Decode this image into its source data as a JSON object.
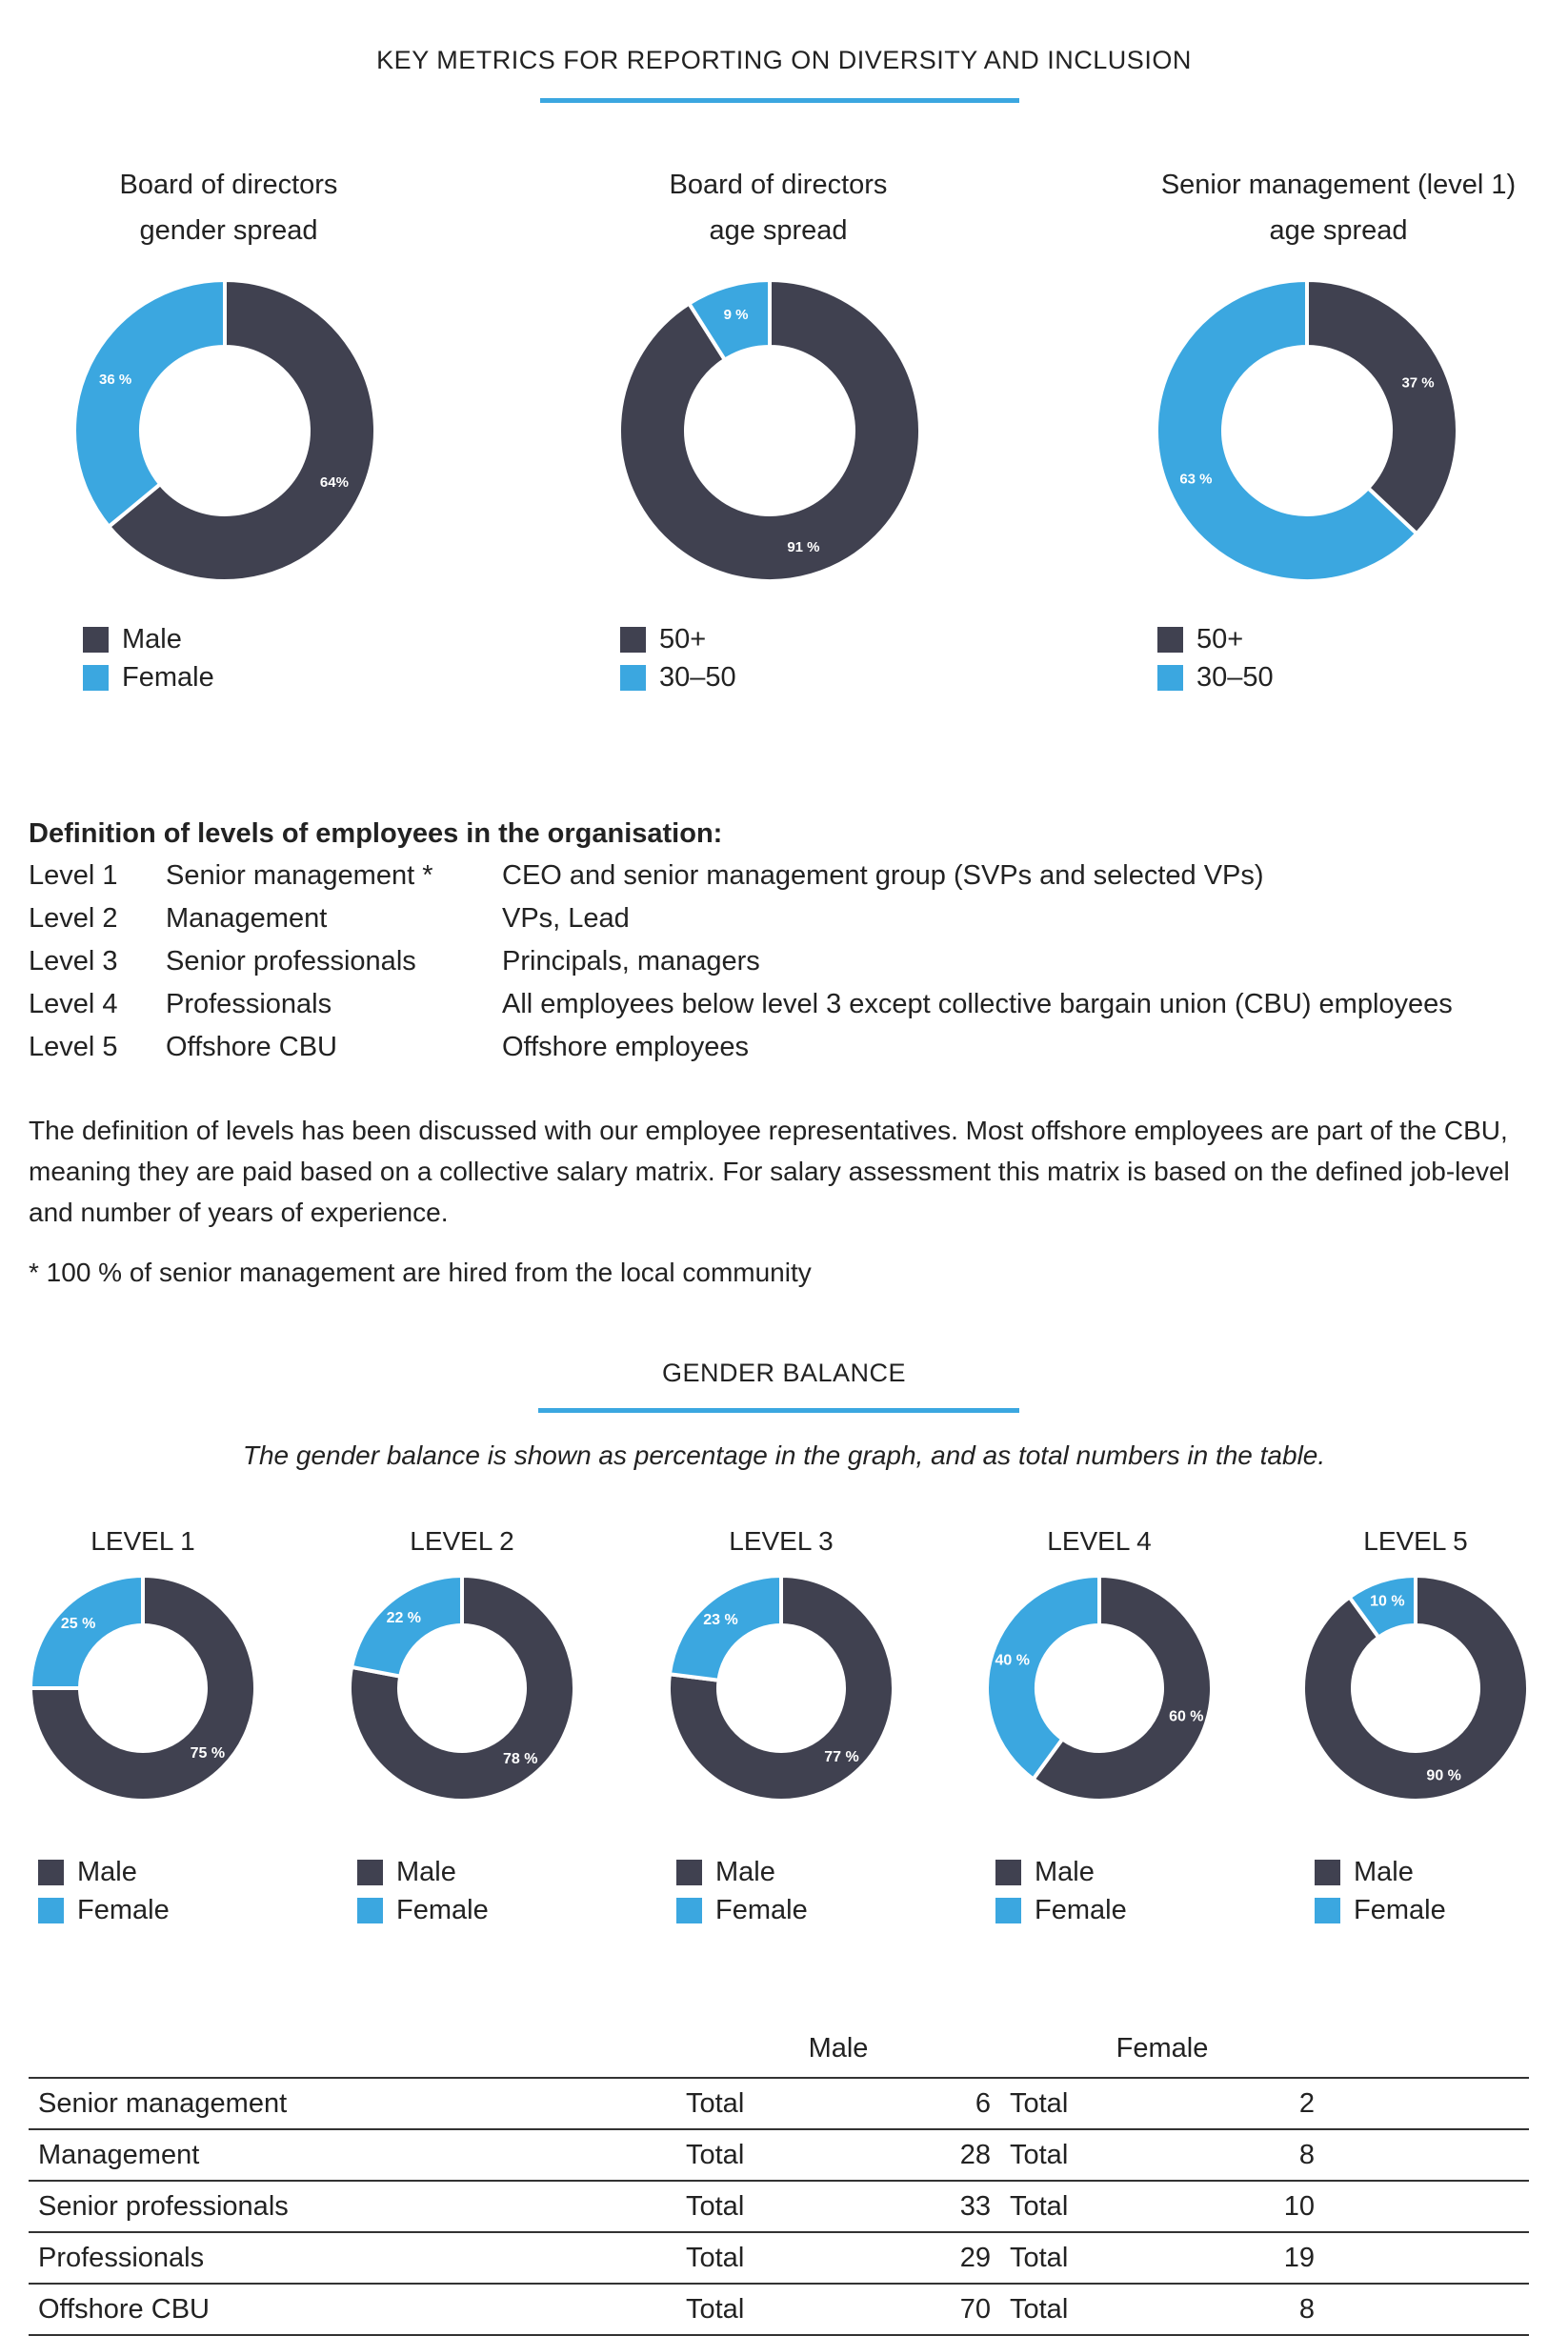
{
  "colors": {
    "dark": "#404150",
    "blue": "#3ba7e0",
    "accent_rule": "#3ba7e0"
  },
  "header": {
    "title": "KEY METRICS FOR REPORTING ON DIVERSITY AND INCLUSION"
  },
  "top_charts": [
    {
      "title_line1": "Board of directors",
      "title_line2": "gender spread",
      "legend": [
        "Male",
        "Female"
      ]
    },
    {
      "title_line1": "Board of directors",
      "title_line2": "age spread",
      "legend": [
        "50+",
        "30–50"
      ]
    },
    {
      "title_line1": "Senior management (level 1)",
      "title_line2": "age spread",
      "legend": [
        "50+",
        "30–50"
      ]
    }
  ],
  "definitions": {
    "heading": "Definition of levels of employees in the organisation:",
    "rows": [
      {
        "level": "Level 1",
        "name": "Senior management *",
        "desc": "CEO and senior management group (SVPs and selected VPs)"
      },
      {
        "level": "Level 2",
        "name": "Management",
        "desc": "VPs, Lead"
      },
      {
        "level": "Level 3",
        "name": "Senior professionals",
        "desc": "Principals, managers"
      },
      {
        "level": "Level 4",
        "name": "Professionals",
        "desc": "All employees below level 3 except collective bargain union (CBU) employees"
      },
      {
        "level": "Level 5",
        "name": "Offshore CBU",
        "desc": "Offshore employees"
      }
    ],
    "paragraph": "The definition of levels has been discussed with our employee representatives. Most offshore employees are part of the CBU, meaning they are paid based on a collective salary matrix. For salary assessment this matrix is based on the defined job-level and number of years of experience.",
    "footnote": "* 100 % of senior management are hired from the local community"
  },
  "gender_balance": {
    "title": "GENDER BALANCE",
    "note": "The gender balance is shown as percentage in the graph, and as total numbers in the table.",
    "legend": [
      "Male",
      "Female"
    ]
  },
  "chart_data": [
    {
      "type": "pie",
      "title": "Board of directors gender spread",
      "categories": [
        "Male",
        "Female"
      ],
      "values": [
        64,
        36
      ],
      "labels": [
        "64%",
        "36 %"
      ]
    },
    {
      "type": "pie",
      "title": "Board of directors age spread",
      "categories": [
        "50+",
        "30–50"
      ],
      "values": [
        91,
        9
      ],
      "labels": [
        "91 %",
        "9 %"
      ]
    },
    {
      "type": "pie",
      "title": "Senior management (level 1) age spread",
      "categories": [
        "50+",
        "30–50"
      ],
      "values": [
        37,
        63
      ],
      "labels": [
        "37 %",
        "63 %"
      ]
    },
    {
      "type": "pie",
      "title": "LEVEL 1",
      "categories": [
        "Male",
        "Female"
      ],
      "values": [
        75,
        25
      ],
      "labels": [
        "75 %",
        "25 %"
      ]
    },
    {
      "type": "pie",
      "title": "LEVEL 2",
      "categories": [
        "Male",
        "Female"
      ],
      "values": [
        78,
        22
      ],
      "labels": [
        "78 %",
        "22 %"
      ]
    },
    {
      "type": "pie",
      "title": "LEVEL 3",
      "categories": [
        "Male",
        "Female"
      ],
      "values": [
        77,
        23
      ],
      "labels": [
        "77 %",
        "23 %"
      ]
    },
    {
      "type": "pie",
      "title": "LEVEL 4",
      "categories": [
        "Male",
        "Female"
      ],
      "values": [
        60,
        40
      ],
      "labels": [
        "60 %",
        "40 %"
      ]
    },
    {
      "type": "pie",
      "title": "LEVEL 5",
      "categories": [
        "Male",
        "Female"
      ],
      "values": [
        90,
        10
      ],
      "labels": [
        "90 %",
        "10 %"
      ]
    },
    {
      "type": "table",
      "headers": [
        "Male",
        "Female"
      ],
      "rows": [
        {
          "label": "Senior management",
          "male_label": "Total",
          "male": "6",
          "female_label": "Total",
          "female": "2"
        },
        {
          "label": "Management",
          "male_label": "Total",
          "male": "28",
          "female_label": "Total",
          "female": "8"
        },
        {
          "label": "Senior professionals",
          "male_label": "Total",
          "male": "33",
          "female_label": "Total",
          "female": "10"
        },
        {
          "label": "Professionals",
          "male_label": "Total",
          "male": "29",
          "female_label": "Total",
          "female": "19"
        },
        {
          "label": "Offshore CBU",
          "male_label": "Total",
          "male": "70",
          "female_label": "Total",
          "female": "8"
        }
      ]
    }
  ]
}
